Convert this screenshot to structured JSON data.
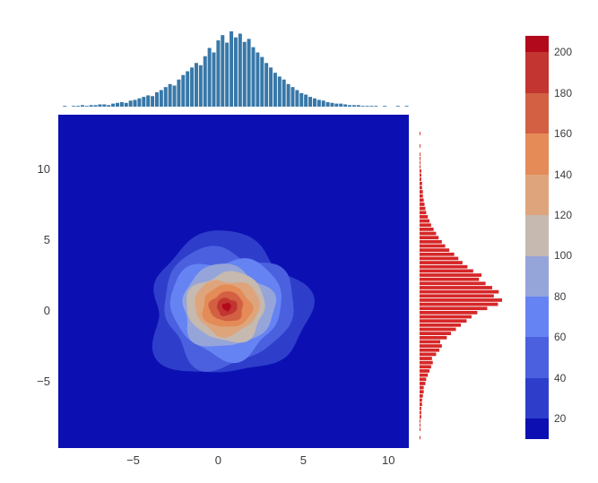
{
  "figure": {
    "background": "#ffffff"
  },
  "axes": {
    "x_range": [
      -9.4,
      11.2
    ],
    "y_range": [
      -9.7,
      13.9
    ],
    "x_ticks": [
      {
        "label": "−5",
        "value": -5
      },
      {
        "label": "0",
        "value": 0
      },
      {
        "label": "5",
        "value": 5
      },
      {
        "label": "10",
        "value": 10
      }
    ],
    "y_ticks": [
      {
        "label": "10",
        "value": 10
      },
      {
        "label": "5",
        "value": 5
      },
      {
        "label": "0",
        "value": 0
      },
      {
        "label": "−5",
        "value": -5
      }
    ],
    "tick_color": "#3b3b3b"
  },
  "colorbar": {
    "min": 10,
    "max": 208,
    "ticks": [
      {
        "label": "20",
        "value": 20
      },
      {
        "label": "40",
        "value": 40
      },
      {
        "label": "60",
        "value": 60
      },
      {
        "label": "80",
        "value": 80
      },
      {
        "label": "100",
        "value": 100
      },
      {
        "label": "120",
        "value": 120
      },
      {
        "label": "140",
        "value": 140
      },
      {
        "label": "160",
        "value": 160
      },
      {
        "label": "180",
        "value": 180
      },
      {
        "label": "200",
        "value": 200
      }
    ],
    "bands": [
      {
        "from": 10,
        "to": 20,
        "color": "rgb(12,16,178)"
      },
      {
        "from": 20,
        "to": 40,
        "color": "rgb(46,62,203)"
      },
      {
        "from": 40,
        "to": 60,
        "color": "rgb(74,96,223)"
      },
      {
        "from": 60,
        "to": 80,
        "color": "rgb(101,131,243)"
      },
      {
        "from": 80,
        "to": 100,
        "color": "rgb(150,165,217)"
      },
      {
        "from": 100,
        "to": 120,
        "color": "rgb(197,185,176)"
      },
      {
        "from": 120,
        "to": 140,
        "color": "rgb(222,165,124)"
      },
      {
        "from": 140,
        "to": 160,
        "color": "rgb(228,139,87)"
      },
      {
        "from": 160,
        "to": 180,
        "color": "rgb(211,96,67)"
      },
      {
        "from": 180,
        "to": 200,
        "color": "rgb(194,53,48)"
      },
      {
        "from": 200,
        "to": 208,
        "color": "rgb(178,10,28)"
      }
    ]
  },
  "chart_data": [
    {
      "type": "histogram",
      "name": "x-marginal-histogram",
      "orientation": "vertical",
      "color": "#3878a8",
      "bins_start": -9.4,
      "bin_width": 0.2575,
      "counts": [
        0,
        1,
        0,
        1,
        1,
        2,
        1,
        2,
        2,
        3,
        3,
        2,
        4,
        5,
        6,
        5,
        8,
        9,
        11,
        13,
        15,
        14,
        19,
        22,
        26,
        30,
        28,
        36,
        42,
        47,
        52,
        58,
        55,
        67,
        78,
        72,
        88,
        95,
        85,
        100,
        92,
        97,
        86,
        90,
        79,
        72,
        66,
        58,
        52,
        45,
        40,
        36,
        30,
        26,
        22,
        18,
        16,
        13,
        11,
        9,
        8,
        6,
        5,
        4,
        4,
        3,
        2,
        2,
        2,
        1,
        1,
        1,
        1,
        0,
        1,
        0,
        0,
        1,
        0,
        1
      ]
    },
    {
      "type": "histogram",
      "name": "y-marginal-histogram",
      "orientation": "horizontal",
      "color": "#d62728",
      "bins_start": -9.7,
      "bin_width": 0.295,
      "counts": [
        0,
        0,
        1,
        0,
        1,
        1,
        1,
        2,
        2,
        2,
        3,
        3,
        4,
        5,
        5,
        7,
        8,
        10,
        12,
        14,
        16,
        15,
        20,
        24,
        27,
        25,
        33,
        38,
        44,
        50,
        57,
        63,
        70,
        82,
        95,
        100,
        90,
        96,
        88,
        80,
        72,
        75,
        65,
        58,
        52,
        47,
        42,
        36,
        31,
        27,
        23,
        20,
        17,
        14,
        12,
        10,
        8,
        7,
        6,
        5,
        4,
        4,
        3,
        3,
        2,
        2,
        2,
        1,
        1,
        1,
        1,
        0,
        1,
        0,
        0,
        1,
        0,
        0,
        0,
        0
      ]
    },
    {
      "type": "contour",
      "name": "joint-density-contour",
      "background": "rgb(12,16,178)",
      "center": {
        "x": 0.5,
        "y": 0.3
      },
      "levels": [
        {
          "value": 30,
          "color": "rgb(46,62,203)",
          "rx": 4.6,
          "ry": 5.0,
          "wobble": 0.1,
          "phase": 0.8
        },
        {
          "value": 50,
          "color": "rgb(74,96,223)",
          "rx": 3.8,
          "ry": 4.15,
          "wobble": 0.09,
          "phase": 2.1
        },
        {
          "value": 70,
          "color": "rgb(101,131,243)",
          "rx": 3.25,
          "ry": 3.5,
          "wobble": 0.08,
          "phase": 3.5
        },
        {
          "value": 90,
          "color": "rgb(150,165,217)",
          "rx": 2.7,
          "ry": 2.9,
          "wobble": 0.08,
          "phase": 1.2
        },
        {
          "value": 110,
          "color": "rgb(197,185,176)",
          "rx": 2.3,
          "ry": 2.45,
          "wobble": 0.07,
          "phase": 4.4
        },
        {
          "value": 130,
          "color": "rgb(222,165,124)",
          "rx": 1.9,
          "ry": 1.95,
          "wobble": 0.07,
          "phase": 2.8
        },
        {
          "value": 150,
          "color": "rgb(228,139,87)",
          "rx": 1.45,
          "ry": 1.5,
          "wobble": 0.06,
          "phase": 0.3
        },
        {
          "value": 170,
          "color": "rgb(211,96,67)",
          "rx": 1.0,
          "ry": 1.05,
          "wobble": 0.07,
          "phase": 5.1
        },
        {
          "value": 190,
          "color": "rgb(194,53,48)",
          "rx": 0.6,
          "ry": 0.62,
          "wobble": 0.08,
          "phase": 1.9
        },
        {
          "value": 205,
          "color": "rgb(178,10,28)",
          "rx": 0.26,
          "ry": 0.28,
          "wobble": 0.1,
          "phase": 3.9
        }
      ]
    }
  ]
}
